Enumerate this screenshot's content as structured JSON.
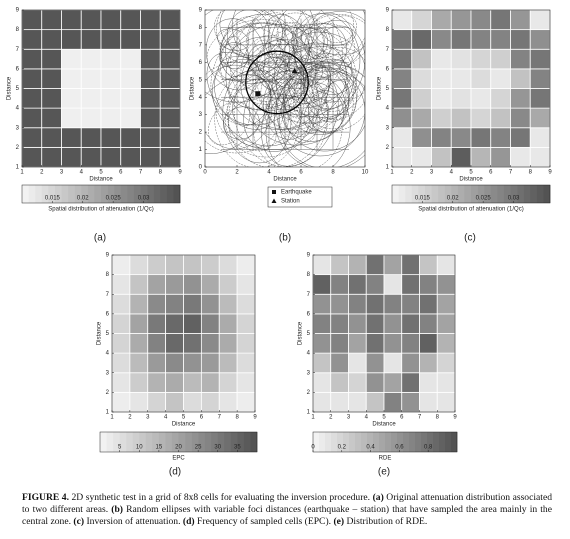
{
  "chart_data": [
    {
      "type": "heatmap",
      "panel_label": "(a)",
      "xlabel": "Distance",
      "ylabel": "Distance",
      "xlim": [
        1,
        9
      ],
      "ylim": [
        1,
        9
      ],
      "xticks": [
        1,
        2,
        3,
        4,
        5,
        6,
        7,
        8,
        9
      ],
      "yticks": [
        1,
        2,
        3,
        4,
        5,
        6,
        7,
        8,
        9
      ],
      "z": [
        [
          0.035,
          0.035,
          0.035,
          0.035,
          0.035,
          0.035,
          0.035,
          0.035
        ],
        [
          0.035,
          0.035,
          0.035,
          0.035,
          0.035,
          0.035,
          0.035,
          0.035
        ],
        [
          0.035,
          0.035,
          0.011,
          0.011,
          0.011,
          0.011,
          0.035,
          0.035
        ],
        [
          0.035,
          0.035,
          0.011,
          0.011,
          0.011,
          0.011,
          0.035,
          0.035
        ],
        [
          0.035,
          0.035,
          0.011,
          0.011,
          0.011,
          0.011,
          0.035,
          0.035
        ],
        [
          0.035,
          0.035,
          0.011,
          0.011,
          0.011,
          0.011,
          0.035,
          0.035
        ],
        [
          0.035,
          0.035,
          0.035,
          0.035,
          0.035,
          0.035,
          0.035,
          0.035
        ],
        [
          0.035,
          0.035,
          0.035,
          0.035,
          0.035,
          0.035,
          0.035,
          0.035
        ]
      ],
      "clim": [
        0.01,
        0.036
      ],
      "cticks": [
        0.015,
        0.02,
        0.025,
        0.03
      ],
      "colormap": [
        "#f5f5f5",
        "#505050"
      ],
      "colorbar_label": "Spatial distribution of attenuation (1/Qc)"
    },
    {
      "type": "ellipses",
      "panel_label": "(b)",
      "xlabel": "Distance",
      "ylabel": "Distance",
      "xlim": [
        0,
        10
      ],
      "ylim": [
        0,
        9
      ],
      "xticks": [
        0,
        2,
        4,
        6,
        8,
        10
      ],
      "yticks": [
        0,
        1,
        2,
        3,
        4,
        5,
        6,
        7,
        8,
        9
      ],
      "series": [
        {
          "name": "Earthquake",
          "marker": "square",
          "color": "#111111",
          "x": [
            3.3
          ],
          "y": [
            4.2
          ]
        },
        {
          "name": "Station",
          "marker": "triangle",
          "color": "#111111",
          "x": [
            5.6
          ],
          "y": [
            5.5
          ]
        }
      ]
    },
    {
      "type": "heatmap",
      "panel_label": "(c)",
      "xlabel": "Distance",
      "ylabel": "Distance",
      "xlim": [
        1,
        9
      ],
      "ylim": [
        1,
        9
      ],
      "xticks": [
        1,
        2,
        3,
        4,
        5,
        6,
        7,
        8,
        9
      ],
      "yticks": [
        1,
        2,
        3,
        4,
        5,
        6,
        7,
        8,
        9
      ],
      "z": [
        [
          0.012,
          0.012,
          0.018,
          0.034,
          0.02,
          0.025,
          0.012,
          0.012
        ],
        [
          0.012,
          0.026,
          0.028,
          0.027,
          0.03,
          0.028,
          0.03,
          0.012
        ],
        [
          0.026,
          0.022,
          0.016,
          0.018,
          0.015,
          0.018,
          0.027,
          0.022
        ],
        [
          0.03,
          0.016,
          0.012,
          0.013,
          0.012,
          0.015,
          0.025,
          0.03
        ],
        [
          0.028,
          0.014,
          0.012,
          0.012,
          0.014,
          0.012,
          0.018,
          0.028
        ],
        [
          0.03,
          0.018,
          0.012,
          0.013,
          0.015,
          0.016,
          0.028,
          0.03
        ],
        [
          0.03,
          0.032,
          0.027,
          0.03,
          0.028,
          0.028,
          0.03,
          0.026
        ],
        [
          0.012,
          0.015,
          0.022,
          0.025,
          0.027,
          0.03,
          0.025,
          0.012
        ]
      ],
      "clim": [
        0.01,
        0.036
      ],
      "cticks": [
        0.015,
        0.02,
        0.025,
        0.03
      ],
      "colormap": [
        "#f5f5f5",
        "#505050"
      ],
      "colorbar_label": "Spatial distribution of attenuation (1/Qc)"
    },
    {
      "type": "heatmap",
      "panel_label": "(d)",
      "xlabel": "Distance",
      "ylabel": "Distance",
      "xlim": [
        1,
        9
      ],
      "ylim": [
        1,
        9
      ],
      "xticks": [
        1,
        2,
        3,
        4,
        5,
        6,
        7,
        8,
        9
      ],
      "yticks": [
        1,
        2,
        3,
        4,
        5,
        6,
        7,
        8,
        9
      ],
      "z": [
        [
          2,
          4,
          8,
          12,
          6,
          8,
          4,
          2
        ],
        [
          4,
          10,
          16,
          18,
          14,
          16,
          8,
          4
        ],
        [
          6,
          14,
          22,
          26,
          24,
          22,
          14,
          6
        ],
        [
          8,
          18,
          28,
          34,
          32,
          26,
          18,
          8
        ],
        [
          8,
          20,
          30,
          34,
          36,
          28,
          18,
          8
        ],
        [
          6,
          16,
          26,
          28,
          30,
          24,
          14,
          6
        ],
        [
          4,
          12,
          20,
          22,
          24,
          18,
          10,
          4
        ],
        [
          2,
          6,
          10,
          12,
          12,
          10,
          6,
          2
        ]
      ],
      "clim": [
        0,
        40
      ],
      "cticks": [
        5,
        10,
        15,
        20,
        25,
        30,
        35
      ],
      "colormap": [
        "#f5f5f5",
        "#505050"
      ],
      "colorbar_label": "EPC"
    },
    {
      "type": "heatmap",
      "panel_label": "(e)",
      "xlabel": "Distance",
      "ylabel": "Distance",
      "xlim": [
        1,
        9
      ],
      "ylim": [
        1,
        9
      ],
      "xticks": [
        1,
        2,
        3,
        4,
        5,
        6,
        7,
        8,
        9
      ],
      "yticks": [
        1,
        2,
        3,
        4,
        5,
        6,
        7,
        8,
        9
      ],
      "z": [
        [
          0.1,
          0.1,
          0.1,
          0.3,
          0.7,
          0.6,
          0.1,
          0.1
        ],
        [
          0.1,
          0.3,
          0.2,
          0.6,
          0.5,
          0.8,
          0.1,
          0.1
        ],
        [
          0.3,
          0.6,
          0.1,
          0.6,
          0.1,
          0.6,
          0.4,
          0.2
        ],
        [
          0.6,
          0.7,
          0.5,
          0.8,
          0.6,
          0.7,
          0.9,
          0.4
        ],
        [
          0.7,
          0.7,
          0.6,
          0.8,
          0.6,
          0.8,
          0.7,
          0.5
        ],
        [
          0.6,
          0.6,
          0.7,
          0.8,
          0.7,
          0.7,
          0.8,
          0.5
        ],
        [
          0.9,
          0.7,
          0.8,
          0.7,
          0.1,
          0.8,
          0.7,
          0.6
        ],
        [
          0.1,
          0.3,
          0.4,
          0.8,
          0.5,
          0.8,
          0.3,
          0.1
        ]
      ],
      "clim": [
        0,
        1
      ],
      "cticks": [
        0,
        0.2,
        0.4,
        0.6,
        0.8
      ],
      "colormap": [
        "#f5f5f5",
        "#505050"
      ],
      "colorbar_label": "RDE"
    }
  ],
  "caption": [
    {
      "text": "FIGURE 4.",
      "bold": true
    },
    {
      "text": " 2D synthetic test in a grid of 8x8 cells for evaluating the inversion procedure. ",
      "bold": false
    },
    {
      "text": "(a)",
      "bold": true
    },
    {
      "text": " Original attenuation distribution associated to two different areas. ",
      "bold": false
    },
    {
      "text": "(b)",
      "bold": true
    },
    {
      "text": " Random ellipses with variable foci distances (earthquake – station) that have sampled the area mainly in the central zone. ",
      "bold": false
    },
    {
      "text": "(c)",
      "bold": true
    },
    {
      "text": " Inversion of attenuation. ",
      "bold": false
    },
    {
      "text": "(d)",
      "bold": true
    },
    {
      "text": " Frequency of sampled cells (EPC). ",
      "bold": false
    },
    {
      "text": "(e)",
      "bold": true
    },
    {
      "text": " Distribution of RDE.",
      "bold": false
    }
  ]
}
